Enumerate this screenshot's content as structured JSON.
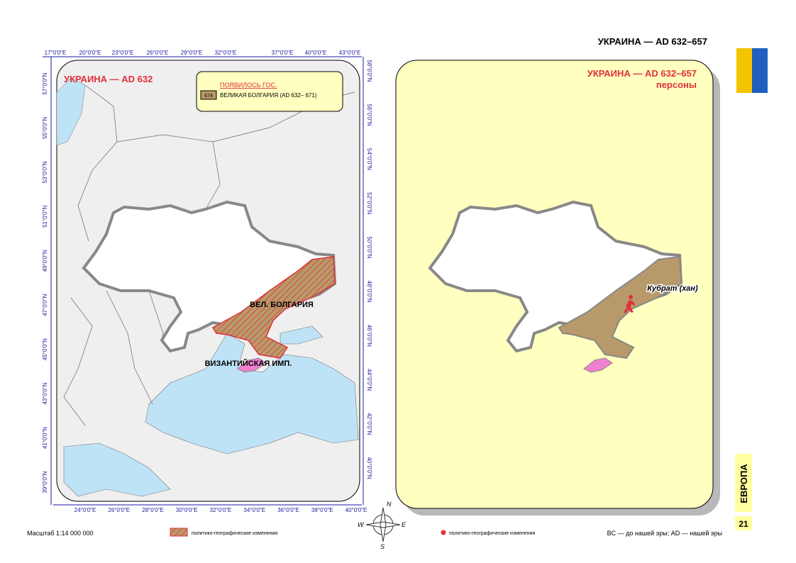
{
  "header": {
    "title": "УКРАИНА — AD 632–657"
  },
  "left_map": {
    "title": "УКРАИНА — AD 632",
    "legend": {
      "heading": "ПОЯВИЛОСЬ ГОС.",
      "code": "674",
      "label": "ВЕЛИКАЯ БОЛГАРИЯ (AD 632– 671)"
    },
    "top_ticks": [
      "17°0'0\"E",
      "20°0'0\"E",
      "23°0'0\"E",
      "26°0'0\"E",
      "29°0'0\"E",
      "32°0'0\"E",
      "37°0'0\"E",
      "40°0'0\"E",
      "43°0'0\"E"
    ],
    "bottom_ticks": [
      "24°0'0\"E",
      "26°0'0\"E",
      "28°0'0\"E",
      "30°0'0\"E",
      "32°0'0\"E",
      "34°0'0\"E",
      "36°0'0\"E",
      "38°0'0\"E",
      "40°0'0\"E"
    ],
    "left_ticks": [
      "57°0'0\"N",
      "55°0'0\"N",
      "53°0'0\"N",
      "51°0'0\"N",
      "49°0'0\"N",
      "47°0'0\"N",
      "45°0'0\"N",
      "43°0'0\"N",
      "41°0'0\"N",
      "39°0'0\"N"
    ],
    "right_ticks": [
      "58°0'0\"N",
      "56°0'0\"N",
      "54°0'0\"N",
      "52°0'0\"N",
      "50°0'0\"N",
      "48°0'0\"N",
      "46°0'0\"N",
      "44°0'0\"N",
      "42°0'0\"N",
      "40°0'0\"N"
    ],
    "labels": [
      "ВЕЛ. БОЛГАРИЯ",
      "ВИЗАНТИЙСКАЯ ИМП."
    ]
  },
  "right_map": {
    "title": "УКРАИНА — AD 632–657",
    "subtitle": "персоны",
    "person": "Кубрат (хан)"
  },
  "compass": [
    "N",
    "W",
    "E",
    "S"
  ],
  "footer": {
    "scale": "Масштаб 1:14 000 000",
    "legend_hatch": "политико-географические изменения",
    "legend_dot": "политико-географические изменения",
    "note": "BC — до нашей эры; AD — нашей эры"
  },
  "side": {
    "section": "ЕВРОПА",
    "page": "21"
  }
}
